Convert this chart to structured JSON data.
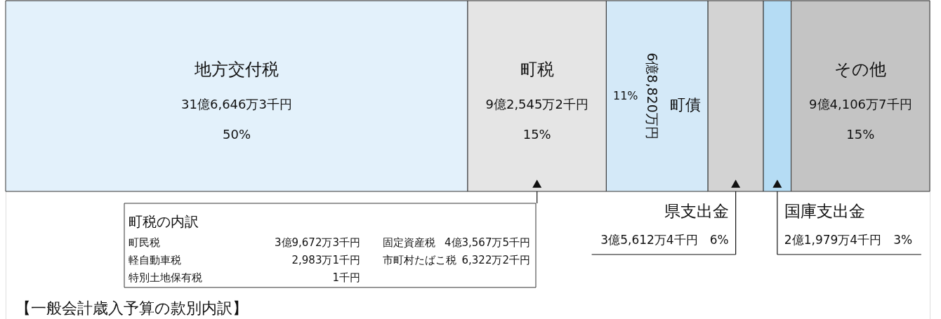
{
  "chart_data": {
    "type": "bar",
    "title": "【一般会計歳入予算の款別内訳】",
    "orientation": "horizontal",
    "stacked": true,
    "categories": [
      null
    ],
    "xlim": [
      0,
      100
    ],
    "series": [
      {
        "name": "地方交付税",
        "color": "#e3f1fb",
        "values": [
          50
        ],
        "value_labels": [
          "50%"
        ]
      },
      {
        "name": "町税",
        "color": "#e5e5e5",
        "values": [
          15
        ],
        "value_labels": [
          "15%"
        ]
      },
      {
        "name": "町債",
        "color": "#d4e9f8",
        "values": [
          11
        ],
        "value_labels": [
          "11%"
        ]
      },
      {
        "name": "県支出金",
        "color": "#d3d3d3",
        "values": [
          6
        ],
        "value_labels": [
          "6%"
        ]
      },
      {
        "name": "国庫支出金",
        "color": "#b5dcf4",
        "values": [
          3
        ],
        "value_labels": [
          "3%"
        ]
      },
      {
        "name": "その他",
        "color": "#c4c4c4",
        "values": [
          15
        ],
        "value_labels": [
          "15%"
        ]
      }
    ],
    "annotations": [
      "31億6,646万3千円",
      "9億2,545万2千円",
      "6億8,820万円",
      "3億5,612万4千円",
      "2億1,979万4千円",
      "9億4,106万7千円",
      "町税の内訳",
      "町民税",
      "3億9,672万3千円",
      "固定資産税",
      "4億3,567万5千円",
      "軽自動車税",
      "2,983万1千円",
      "市町村たばこ税",
      "6,322万2千円",
      "特別土地保有税",
      "1千円"
    ]
  }
}
